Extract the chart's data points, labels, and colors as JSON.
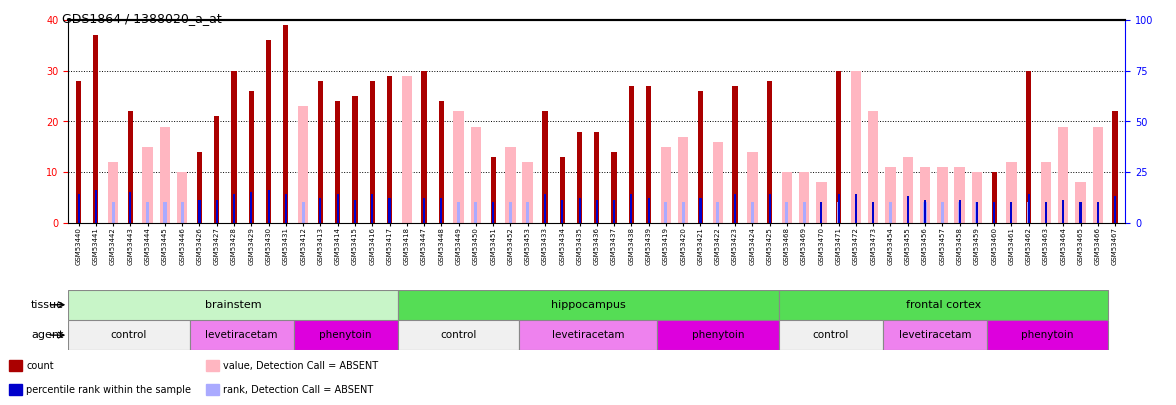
{
  "title": "GDS1864 / 1388020_a_at",
  "samples": [
    "GSM53440",
    "GSM53441",
    "GSM53442",
    "GSM53443",
    "GSM53444",
    "GSM53445",
    "GSM53446",
    "GSM53426",
    "GSM53427",
    "GSM53428",
    "GSM53429",
    "GSM53430",
    "GSM53431",
    "GSM53412",
    "GSM53413",
    "GSM53414",
    "GSM53415",
    "GSM53416",
    "GSM53417",
    "GSM53418",
    "GSM53447",
    "GSM53448",
    "GSM53449",
    "GSM53450",
    "GSM53451",
    "GSM53452",
    "GSM53453",
    "GSM53433",
    "GSM53434",
    "GSM53435",
    "GSM53436",
    "GSM53437",
    "GSM53438",
    "GSM53439",
    "GSM53419",
    "GSM53420",
    "GSM53421",
    "GSM53422",
    "GSM53423",
    "GSM53424",
    "GSM53425",
    "GSM53468",
    "GSM53469",
    "GSM53470",
    "GSM53471",
    "GSM53472",
    "GSM53473",
    "GSM53454",
    "GSM53455",
    "GSM53456",
    "GSM53457",
    "GSM53458",
    "GSM53459",
    "GSM53460",
    "GSM53461",
    "GSM53462",
    "GSM53463",
    "GSM53464",
    "GSM53465",
    "GSM53466",
    "GSM53467"
  ],
  "count_values": [
    28,
    37,
    0,
    22,
    0,
    0,
    0,
    14,
    21,
    30,
    26,
    36,
    39,
    0,
    28,
    24,
    25,
    28,
    29,
    0,
    30,
    24,
    0,
    0,
    13,
    0,
    0,
    22,
    13,
    18,
    18,
    14,
    27,
    27,
    0,
    0,
    26,
    0,
    27,
    0,
    28,
    0,
    0,
    0,
    30,
    0,
    0,
    0,
    0,
    0,
    0,
    0,
    0,
    10,
    0,
    30,
    0,
    0,
    0,
    0,
    22
  ],
  "absent_count_values": [
    0,
    0,
    12,
    0,
    15,
    19,
    10,
    0,
    0,
    0,
    0,
    0,
    0,
    23,
    0,
    0,
    0,
    0,
    0,
    29,
    0,
    0,
    22,
    19,
    0,
    15,
    12,
    0,
    0,
    0,
    0,
    0,
    0,
    0,
    15,
    17,
    0,
    16,
    0,
    14,
    0,
    10,
    10,
    8,
    0,
    30,
    22,
    11,
    13,
    11,
    11,
    11,
    10,
    0,
    12,
    0,
    12,
    19,
    8,
    19,
    0
  ],
  "rank_values": [
    14,
    16,
    0,
    15,
    0,
    0,
    0,
    11,
    11,
    14,
    15,
    16,
    14,
    0,
    12,
    14,
    11,
    14,
    12,
    0,
    12,
    12,
    0,
    0,
    10,
    0,
    0,
    14,
    11,
    12,
    11,
    11,
    14,
    12,
    0,
    0,
    12,
    0,
    14,
    0,
    14,
    0,
    0,
    10,
    14,
    14,
    10,
    0,
    13,
    11,
    0,
    11,
    10,
    10,
    10,
    14,
    10,
    11,
    10,
    10,
    13
  ],
  "absent_rank_values": [
    0,
    0,
    10,
    0,
    10,
    10,
    10,
    0,
    0,
    0,
    0,
    0,
    0,
    10,
    0,
    0,
    0,
    0,
    0,
    0,
    0,
    0,
    10,
    10,
    0,
    10,
    10,
    0,
    0,
    0,
    0,
    0,
    0,
    0,
    10,
    10,
    0,
    10,
    0,
    10,
    0,
    10,
    10,
    0,
    10,
    0,
    0,
    10,
    0,
    10,
    10,
    10,
    10,
    0,
    0,
    10,
    0,
    0,
    0,
    0,
    0
  ],
  "tissue_groups": [
    {
      "label": "brainstem",
      "start": 0,
      "end": 19,
      "color": "#c8f5c8"
    },
    {
      "label": "hippocampus",
      "start": 19,
      "end": 41,
      "color": "#55dd55"
    },
    {
      "label": "frontal cortex",
      "start": 41,
      "end": 60,
      "color": "#55dd55"
    }
  ],
  "agent_groups": [
    {
      "label": "control",
      "start": 0,
      "end": 7,
      "color": "#f0f0f0"
    },
    {
      "label": "levetiracetam",
      "start": 7,
      "end": 13,
      "color": "#ee82ee"
    },
    {
      "label": "phenytoin",
      "start": 13,
      "end": 19,
      "color": "#dd00dd"
    },
    {
      "label": "control",
      "start": 19,
      "end": 26,
      "color": "#f0f0f0"
    },
    {
      "label": "levetiracetam",
      "start": 26,
      "end": 34,
      "color": "#ee82ee"
    },
    {
      "label": "phenytoin",
      "start": 34,
      "end": 41,
      "color": "#dd00dd"
    },
    {
      "label": "control",
      "start": 41,
      "end": 47,
      "color": "#f0f0f0"
    },
    {
      "label": "levetiracetam",
      "start": 47,
      "end": 53,
      "color": "#ee82ee"
    },
    {
      "label": "phenytoin",
      "start": 53,
      "end": 60,
      "color": "#dd00dd"
    }
  ],
  "ylim_left": [
    0,
    40
  ],
  "ylim_right": [
    0,
    100
  ],
  "yticks_left": [
    0,
    10,
    20,
    30,
    40
  ],
  "yticks_right": [
    0,
    25,
    50,
    75,
    100
  ],
  "color_count": "#aa0000",
  "color_rank": "#0000cc",
  "color_absent_count": "#ffb6c1",
  "color_absent_rank": "#aaaaff",
  "background_color": "#ffffff",
  "legend_items": [
    {
      "color": "#aa0000",
      "label": "count"
    },
    {
      "color": "#0000cc",
      "label": "percentile rank within the sample"
    },
    {
      "color": "#ffb6c1",
      "label": "value, Detection Call = ABSENT"
    },
    {
      "color": "#aaaaff",
      "label": "rank, Detection Call = ABSENT"
    }
  ]
}
